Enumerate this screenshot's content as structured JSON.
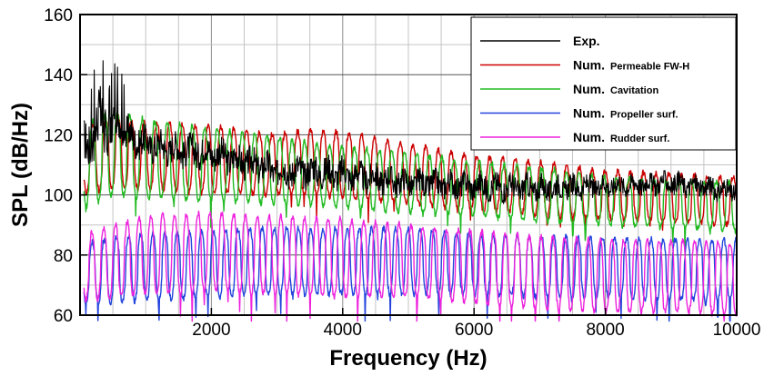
{
  "chart_data": {
    "type": "line",
    "xlabel": "Frequency (Hz)",
    "ylabel": "SPL (dB/Hz)",
    "xlim": [
      0,
      10000
    ],
    "ylim": [
      60,
      160
    ],
    "xticks": [
      2000,
      4000,
      6000,
      8000,
      10000
    ],
    "yticks": [
      60,
      80,
      100,
      120,
      140,
      160
    ],
    "grid": true,
    "legend_position": "top-right",
    "series": [
      {
        "name": "Exp.",
        "label_prefix": "Exp.",
        "label_suffix": "",
        "color": "#000000",
        "x": [
          100,
          300,
          500,
          1000,
          1500,
          2000,
          2500,
          3000,
          3500,
          4000,
          5000,
          6000,
          7000,
          8000,
          9000,
          10000
        ],
        "y": [
          116,
          124,
          122,
          117,
          115,
          114,
          111,
          108,
          108,
          107,
          104,
          103,
          102,
          103,
          104,
          101
        ],
        "amp": [
          9,
          12,
          8,
          6,
          6,
          6,
          6,
          6,
          6,
          6,
          5,
          5,
          5,
          4,
          4,
          4
        ]
      },
      {
        "name": "Num. Permeable FW-H",
        "label_prefix": "Num.",
        "label_suffix": "Permeable FW-H",
        "color": "#cc0000",
        "x": [
          100,
          500,
          1000,
          2000,
          3000,
          3500,
          4000,
          5000,
          6000,
          7000,
          8000,
          9000,
          10000
        ],
        "y": [
          112,
          114,
          113,
          112,
          110,
          111,
          110,
          107,
          104,
          102,
          100,
          99,
          98
        ],
        "amp": [
          11,
          12,
          11,
          11,
          10,
          11,
          11,
          10,
          9,
          9,
          8,
          8,
          8
        ]
      },
      {
        "name": "Num. Cavitation",
        "label_prefix": "Num.",
        "label_suffix": "Cavitation",
        "color": "#22bb22",
        "x": [
          100,
          500,
          1000,
          2000,
          3000,
          4000,
          5000,
          6000,
          7000,
          8000,
          9000,
          10000
        ],
        "y": [
          110,
          114,
          112,
          110,
          108,
          106,
          104,
          102,
          100,
          98,
          97,
          96
        ],
        "amp": [
          14,
          14,
          13,
          12,
          11,
          10,
          10,
          9,
          9,
          8,
          8,
          8
        ]
      },
      {
        "name": "Num. Propeller surf.",
        "label_prefix": "Num.",
        "label_suffix": "Propeller surf.",
        "color": "#2244dd",
        "x": [
          100,
          500,
          1000,
          2000,
          3000,
          4000,
          5000,
          6000,
          7000,
          8000,
          9000,
          10000
        ],
        "y": [
          74,
          75,
          76,
          77,
          78,
          78,
          78,
          77,
          76,
          76,
          75,
          75
        ],
        "amp": [
          10,
          11,
          11,
          11,
          11,
          11,
          11,
          10,
          10,
          10,
          10,
          10
        ]
      },
      {
        "name": "Num. Rudder surf.",
        "label_prefix": "Num.",
        "label_suffix": "Rudder surf.",
        "color": "#ee22dd",
        "x": [
          100,
          500,
          1000,
          2000,
          3000,
          4000,
          5000,
          6000,
          7000,
          8000,
          9000,
          10000
        ],
        "y": [
          76,
          78,
          80,
          81,
          80,
          79,
          78,
          76,
          74,
          73,
          73,
          72
        ],
        "amp": [
          11,
          12,
          13,
          13,
          13,
          13,
          12,
          12,
          12,
          12,
          12,
          12
        ]
      }
    ]
  }
}
